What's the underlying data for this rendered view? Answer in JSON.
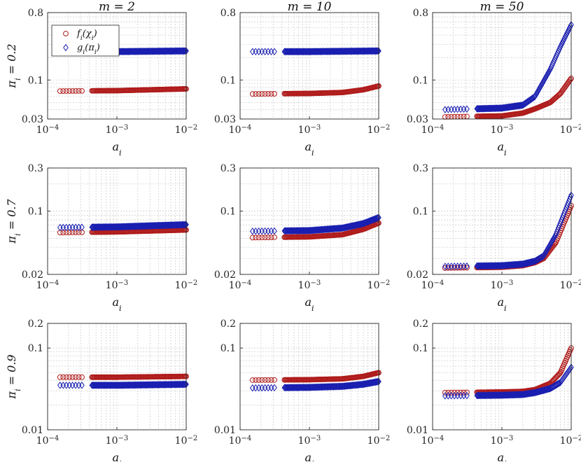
{
  "figure": {
    "column_titles": [
      "m = 2",
      "m = 10",
      "m = 50"
    ],
    "row_labels": [
      "π_i = 0.2",
      "π_i = 0.7",
      "π_i = 0.9"
    ],
    "xlabel": "a_i",
    "legend": [
      "f_i(χ_i)",
      "g_i(π_i)"
    ]
  },
  "colors": {
    "f_series": "#b01c1c",
    "g_series": "#1a1fb0"
  },
  "chart_data": [
    {
      "type": "scatter",
      "row": 0,
      "col": 0,
      "title": "m = 2",
      "ylabel": "π_i = 0.2",
      "xlabel": "a_i",
      "xscale": "log",
      "yscale": "log",
      "xlim": [
        0.0001,
        0.01
      ],
      "ylim": [
        0.03,
        0.8
      ],
      "xticks": [
        0.0001,
        0.001,
        0.01
      ],
      "xtick_labels": [
        "10^-4",
        "10^-3",
        "10^-2"
      ],
      "yticks": [
        0.03,
        0.1,
        0.8
      ],
      "ytick_labels": [
        "0.03",
        "0.1",
        "0.8"
      ],
      "legend_visible": true,
      "legend_position": "top-left",
      "series": [
        {
          "name": "f_i(χ_i)",
          "marker": "circle",
          "anchors": [
            [
              0.00015,
              0.071
            ],
            [
              0.001,
              0.072
            ],
            [
              0.01,
              0.076
            ]
          ]
        },
        {
          "name": "g_i(π_i)",
          "marker": "diamond",
          "anchors": [
            [
              0.00015,
              0.24
            ],
            [
              0.001,
              0.24
            ],
            [
              0.01,
              0.245
            ]
          ]
        }
      ]
    },
    {
      "type": "scatter",
      "row": 0,
      "col": 1,
      "title": "m = 10",
      "ylabel": "",
      "xlabel": "a_i",
      "xscale": "log",
      "yscale": "log",
      "xlim": [
        0.0001,
        0.01
      ],
      "ylim": [
        0.03,
        0.8
      ],
      "xticks": [
        0.0001,
        0.001,
        0.01
      ],
      "xtick_labels": [
        "10^-4",
        "10^-3",
        "10^-2"
      ],
      "yticks": [
        0.03,
        0.1,
        0.8
      ],
      "ytick_labels": [
        "0.03",
        "0.1",
        "0.8"
      ],
      "legend_visible": false,
      "series": [
        {
          "name": "f_i(χ_i)",
          "marker": "circle",
          "anchors": [
            [
              0.00015,
              0.065
            ],
            [
              0.001,
              0.066
            ],
            [
              0.003,
              0.068
            ],
            [
              0.006,
              0.074
            ],
            [
              0.01,
              0.083
            ]
          ]
        },
        {
          "name": "g_i(π_i)",
          "marker": "diamond",
          "anchors": [
            [
              0.00015,
              0.24
            ],
            [
              0.001,
              0.24
            ],
            [
              0.01,
              0.245
            ]
          ]
        }
      ]
    },
    {
      "type": "scatter",
      "row": 0,
      "col": 2,
      "title": "m = 50",
      "ylabel": "",
      "xlabel": "a_i",
      "xscale": "log",
      "yscale": "log",
      "xlim": [
        0.0001,
        0.01
      ],
      "ylim": [
        0.03,
        0.8
      ],
      "xticks": [
        0.0001,
        0.001,
        0.01
      ],
      "xtick_labels": [
        "10^-4",
        "10^-3",
        "10^-2"
      ],
      "yticks": [
        0.03,
        0.1,
        0.8
      ],
      "ytick_labels": [
        "0.03",
        "0.1",
        "0.8"
      ],
      "legend_visible": false,
      "series": [
        {
          "name": "f_i(χ_i)",
          "marker": "circle",
          "anchors": [
            [
              0.00015,
              0.032
            ],
            [
              0.001,
              0.033
            ],
            [
              0.002,
              0.036
            ],
            [
              0.003,
              0.041
            ],
            [
              0.005,
              0.05
            ],
            [
              0.007,
              0.066
            ],
            [
              0.01,
              0.105
            ]
          ]
        },
        {
          "name": "g_i(π_i)",
          "marker": "diamond",
          "anchors": [
            [
              0.00015,
              0.04
            ],
            [
              0.001,
              0.042
            ],
            [
              0.002,
              0.046
            ],
            [
              0.003,
              0.06
            ],
            [
              0.005,
              0.14
            ],
            [
              0.007,
              0.28
            ],
            [
              0.01,
              0.55
            ]
          ]
        }
      ]
    },
    {
      "type": "scatter",
      "row": 1,
      "col": 0,
      "title": "",
      "ylabel": "π_i = 0.7",
      "xlabel": "a_i",
      "xscale": "log",
      "yscale": "log",
      "xlim": [
        0.0001,
        0.01
      ],
      "ylim": [
        0.02,
        0.3
      ],
      "xticks": [
        0.0001,
        0.001,
        0.01
      ],
      "xtick_labels": [
        "10^-4",
        "10^-3",
        "10^-2"
      ],
      "yticks": [
        0.02,
        0.1,
        0.3
      ],
      "ytick_labels": [
        "0.02",
        "0.1",
        "0.3"
      ],
      "legend_visible": false,
      "series": [
        {
          "name": "f_i(χ_i)",
          "marker": "circle",
          "anchors": [
            [
              0.00015,
              0.058
            ],
            [
              0.001,
              0.059
            ],
            [
              0.01,
              0.062
            ]
          ]
        },
        {
          "name": "g_i(π_i)",
          "marker": "diamond",
          "anchors": [
            [
              0.00015,
              0.066
            ],
            [
              0.001,
              0.067
            ],
            [
              0.01,
              0.071
            ]
          ]
        }
      ]
    },
    {
      "type": "scatter",
      "row": 1,
      "col": 1,
      "title": "",
      "ylabel": "",
      "xlabel": "a_i",
      "xscale": "log",
      "yscale": "log",
      "xlim": [
        0.0001,
        0.01
      ],
      "ylim": [
        0.02,
        0.3
      ],
      "xticks": [
        0.0001,
        0.001,
        0.01
      ],
      "xtick_labels": [
        "10^-4",
        "10^-3",
        "10^-2"
      ],
      "yticks": [
        0.02,
        0.1,
        0.3
      ],
      "ytick_labels": [
        "0.02",
        "0.1",
        "0.3"
      ],
      "legend_visible": false,
      "series": [
        {
          "name": "f_i(χ_i)",
          "marker": "circle",
          "anchors": [
            [
              0.00015,
              0.051
            ],
            [
              0.001,
              0.052
            ],
            [
              0.003,
              0.055
            ],
            [
              0.006,
              0.063
            ],
            [
              0.01,
              0.074
            ]
          ]
        },
        {
          "name": "g_i(π_i)",
          "marker": "diamond",
          "anchors": [
            [
              0.00015,
              0.06
            ],
            [
              0.001,
              0.061
            ],
            [
              0.003,
              0.065
            ],
            [
              0.006,
              0.073
            ],
            [
              0.01,
              0.085
            ]
          ]
        }
      ]
    },
    {
      "type": "scatter",
      "row": 1,
      "col": 2,
      "title": "",
      "ylabel": "",
      "xlabel": "a_i",
      "xscale": "log",
      "yscale": "log",
      "xlim": [
        0.0001,
        0.01
      ],
      "ylim": [
        0.02,
        0.3
      ],
      "xticks": [
        0.0001,
        0.001,
        0.01
      ],
      "xtick_labels": [
        "10^-4",
        "10^-3",
        "10^-2"
      ],
      "yticks": [
        0.02,
        0.1,
        0.3
      ],
      "ytick_labels": [
        "0.02",
        "0.1",
        "0.3"
      ],
      "legend_visible": false,
      "series": [
        {
          "name": "f_i(χ_i)",
          "marker": "circle",
          "anchors": [
            [
              0.00015,
              0.0235
            ],
            [
              0.001,
              0.024
            ],
            [
              0.002,
              0.025
            ],
            [
              0.003,
              0.027
            ],
            [
              0.004,
              0.03
            ],
            [
              0.006,
              0.045
            ],
            [
              0.01,
              0.115
            ]
          ]
        },
        {
          "name": "g_i(π_i)",
          "marker": "diamond",
          "anchors": [
            [
              0.00015,
              0.0245
            ],
            [
              0.001,
              0.025
            ],
            [
              0.002,
              0.026
            ],
            [
              0.003,
              0.028
            ],
            [
              0.004,
              0.032
            ],
            [
              0.006,
              0.055
            ],
            [
              0.01,
              0.15
            ]
          ]
        }
      ]
    },
    {
      "type": "scatter",
      "row": 2,
      "col": 0,
      "title": "",
      "ylabel": "π_i = 0.9",
      "xlabel": "a_i",
      "xscale": "log",
      "yscale": "log",
      "xlim": [
        0.0001,
        0.01
      ],
      "ylim": [
        0.01,
        0.2
      ],
      "xticks": [
        0.0001,
        0.001,
        0.01
      ],
      "xtick_labels": [
        "10^-4",
        "10^-3",
        "10^-2"
      ],
      "yticks": [
        0.01,
        0.1,
        0.2
      ],
      "ytick_labels": [
        "0.01",
        "0.1",
        "0.2"
      ],
      "legend_visible": false,
      "series": [
        {
          "name": "f_i(χ_i)",
          "marker": "circle",
          "anchors": [
            [
              0.00015,
              0.044
            ],
            [
              0.001,
              0.044
            ],
            [
              0.01,
              0.045
            ]
          ]
        },
        {
          "name": "g_i(π_i)",
          "marker": "diamond",
          "anchors": [
            [
              0.00015,
              0.035
            ],
            [
              0.001,
              0.035
            ],
            [
              0.01,
              0.036
            ]
          ]
        }
      ]
    },
    {
      "type": "scatter",
      "row": 2,
      "col": 1,
      "title": "",
      "ylabel": "",
      "xlabel": "a_i",
      "xscale": "log",
      "yscale": "log",
      "xlim": [
        0.0001,
        0.01
      ],
      "ylim": [
        0.01,
        0.2
      ],
      "xticks": [
        0.0001,
        0.001,
        0.01
      ],
      "xtick_labels": [
        "10^-4",
        "10^-3",
        "10^-2"
      ],
      "yticks": [
        0.01,
        0.1,
        0.2
      ],
      "ytick_labels": [
        "0.01",
        "0.1",
        "0.2"
      ],
      "legend_visible": false,
      "series": [
        {
          "name": "f_i(χ_i)",
          "marker": "circle",
          "anchors": [
            [
              0.00015,
              0.0405
            ],
            [
              0.001,
              0.041
            ],
            [
              0.003,
              0.042
            ],
            [
              0.006,
              0.045
            ],
            [
              0.01,
              0.05
            ]
          ]
        },
        {
          "name": "g_i(π_i)",
          "marker": "diamond",
          "anchors": [
            [
              0.00015,
              0.0325
            ],
            [
              0.001,
              0.033
            ],
            [
              0.003,
              0.034
            ],
            [
              0.006,
              0.036
            ],
            [
              0.01,
              0.039
            ]
          ]
        }
      ]
    },
    {
      "type": "scatter",
      "row": 2,
      "col": 2,
      "title": "",
      "ylabel": "",
      "xlabel": "a_i",
      "xscale": "log",
      "yscale": "log",
      "xlim": [
        0.0001,
        0.01
      ],
      "ylim": [
        0.01,
        0.2
      ],
      "xticks": [
        0.0001,
        0.001,
        0.01
      ],
      "xtick_labels": [
        "10^-4",
        "10^-3",
        "10^-2"
      ],
      "yticks": [
        0.01,
        0.1,
        0.2
      ],
      "ytick_labels": [
        "0.01",
        "0.1",
        "0.2"
      ],
      "legend_visible": false,
      "series": [
        {
          "name": "f_i(χ_i)",
          "marker": "circle",
          "anchors": [
            [
              0.00015,
              0.0285
            ],
            [
              0.001,
              0.029
            ],
            [
              0.002,
              0.0295
            ],
            [
              0.003,
              0.031
            ],
            [
              0.005,
              0.037
            ],
            [
              0.007,
              0.05
            ],
            [
              0.01,
              0.1
            ]
          ]
        },
        {
          "name": "g_i(π_i)",
          "marker": "diamond",
          "anchors": [
            [
              0.00015,
              0.026
            ],
            [
              0.001,
              0.0265
            ],
            [
              0.002,
              0.027
            ],
            [
              0.003,
              0.0285
            ],
            [
              0.005,
              0.032
            ],
            [
              0.007,
              0.038
            ],
            [
              0.01,
              0.058
            ]
          ]
        }
      ]
    }
  ]
}
